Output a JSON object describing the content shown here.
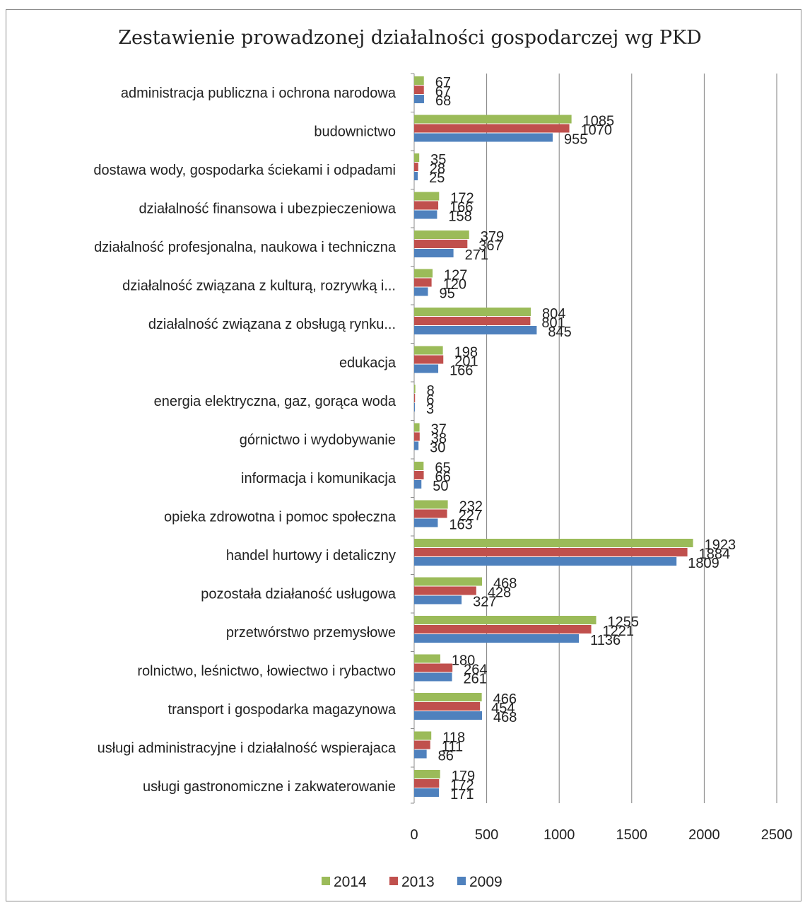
{
  "chart_data": {
    "type": "bar",
    "orientation": "horizontal",
    "title": "Zestawienie prowadzonej działalności gospodarczej wg PKD",
    "categories": [
      "administracja publiczna i ochrona narodowa",
      "budownictwo",
      "dostawa wody, gospodarka ściekami i odpadami",
      "działalność finansowa i ubezpieczeniowa",
      "działalność profesjonalna, naukowa i techniczna",
      "działalność związana z kulturą, rozrywką i...",
      "działalność związana z obsługą rynku...",
      "edukacja",
      "energia elektryczna, gaz, gorąca woda",
      "górnictwo i wydobywanie",
      "informacja i komunikacja",
      "opieka zdrowotna i pomoc społeczna",
      "handel hurtowy i detaliczny",
      "pozostała działaność usługowa",
      "przetwórstwo przemysłowe",
      "rolnictwo, leśnictwo, łowiectwo i rybactwo",
      "transport i gospodarka magazynowa",
      "usługi administracyjne i działalność wspierajaca",
      "usługi gastronomiczne i zakwaterowanie"
    ],
    "series": [
      {
        "name": "2014",
        "color": "#9bbb59",
        "values": [
          67,
          1085,
          35,
          172,
          379,
          127,
          804,
          198,
          8,
          37,
          65,
          232,
          1923,
          468,
          1255,
          180,
          466,
          118,
          179
        ]
      },
      {
        "name": "2013",
        "color": "#c0504d",
        "values": [
          67,
          1070,
          28,
          166,
          367,
          120,
          801,
          201,
          6,
          38,
          66,
          227,
          1884,
          428,
          1221,
          264,
          454,
          111,
          172
        ]
      },
      {
        "name": "2009",
        "color": "#4f81bd",
        "values": [
          68,
          955,
          25,
          158,
          271,
          95,
          845,
          166,
          3,
          30,
          50,
          163,
          1809,
          327,
          1136,
          261,
          468,
          86,
          171
        ]
      }
    ],
    "xlim": [
      0,
      2500
    ],
    "xticks": [
      "0",
      "500",
      "1000",
      "1500",
      "2000",
      "2500"
    ],
    "grid": "vertical",
    "legend": "bottom"
  }
}
